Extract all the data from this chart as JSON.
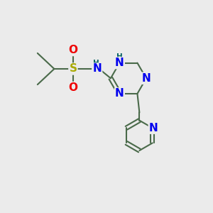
{
  "bg_color": "#ebebeb",
  "bond_color": "#4a6a4a",
  "bond_width": 1.5,
  "atom_colors": {
    "N": "#0000ee",
    "NH": "#006060",
    "S": "#aaaa00",
    "O": "#ee0000",
    "C": "#4a6a4a"
  },
  "figsize": [
    3.0,
    3.0
  ],
  "dpi": 100
}
